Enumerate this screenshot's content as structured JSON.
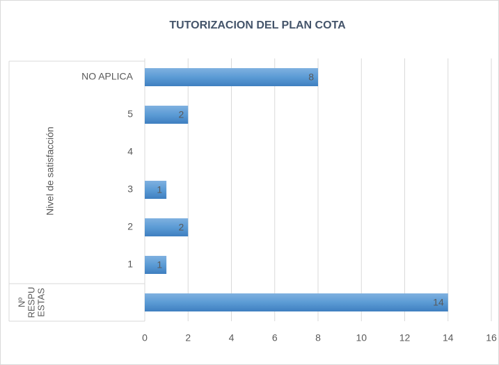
{
  "chart_data": {
    "type": "bar",
    "orientation": "horizontal",
    "title": "TUTORIZACION DEL PLAN COTA",
    "groups": [
      {
        "name": [
          "Nivel de satisfacción"
        ],
        "categories": [
          "NO APLICA",
          "5",
          "4",
          "3",
          "2",
          "1"
        ],
        "values": [
          8,
          2,
          null,
          1,
          2,
          1
        ]
      },
      {
        "name": [
          "Nº",
          "RESPU",
          "ESTAS"
        ],
        "categories": [
          null
        ],
        "values": [
          14
        ]
      }
    ],
    "color": "#5b9bd5",
    "xlim": [
      0,
      16
    ],
    "xticks": [
      0,
      2,
      4,
      6,
      8,
      10,
      12,
      14,
      16
    ],
    "grid": true
  }
}
